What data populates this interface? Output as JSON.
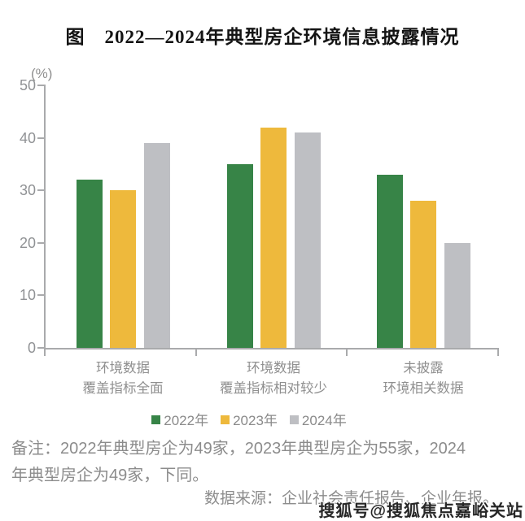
{
  "figure": {
    "title": "图　2022—2024年典型房企环境信息披露情况",
    "unit_label": "(%)",
    "note_line1": "备注：2022年典型房企为49家，2023年典型房企为55家，2024",
    "note_line2": "年典型房企为49家，下同。",
    "source": "数据来源：企业社会责任报告、企业年报。",
    "watermark": "搜狐号@搜狐焦点嘉峪关站"
  },
  "chart_data": {
    "type": "bar",
    "title": "图　2022—2024年典型房企环境信息披露情况",
    "unit": "%",
    "categories": [
      "环境数据覆盖指标全面",
      "环境数据覆盖指标相对较少",
      "未披露环境相关数据"
    ],
    "category_label_lines": [
      [
        "环境数据",
        "覆盖指标全面"
      ],
      [
        "环境数据",
        "覆盖指标相对较少"
      ],
      [
        "未披露",
        "环境相关数据"
      ]
    ],
    "series": [
      {
        "name": "2022年",
        "color": "#378447",
        "values": [
          32,
          35,
          33
        ]
      },
      {
        "name": "2023年",
        "color": "#EEB93C",
        "values": [
          30,
          42,
          28
        ]
      },
      {
        "name": "2024年",
        "color": "#BEBFC3",
        "values": [
          39,
          41,
          20
        ]
      }
    ],
    "ylim": [
      0,
      50
    ],
    "yticks": [
      0,
      10,
      20,
      30,
      40,
      50
    ],
    "grid": false,
    "legend_position": "bottom",
    "axis_color": "#A9AAAC",
    "label_color": "#8F8F8F"
  }
}
